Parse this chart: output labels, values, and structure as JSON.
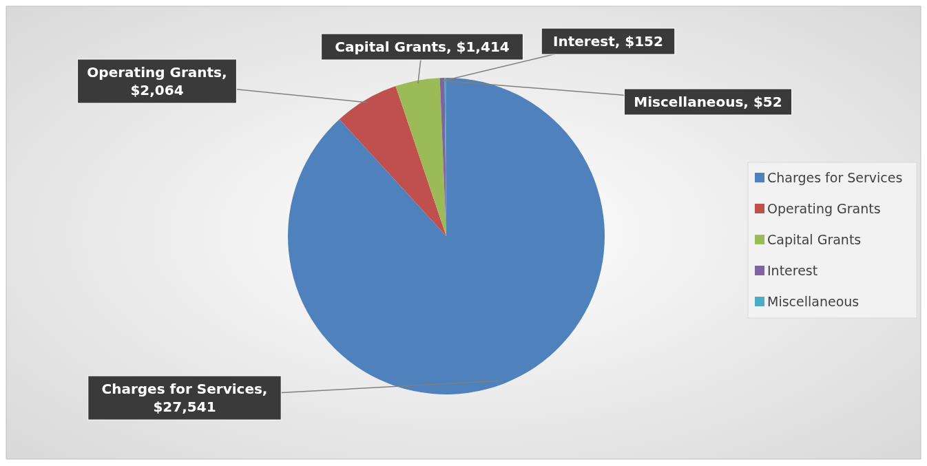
{
  "chart_data": {
    "type": "pie",
    "categories": [
      "Charges for Services",
      "Operating Grants",
      "Capital Grants",
      "Interest",
      "Miscellaneous"
    ],
    "values": [
      27541,
      2064,
      1414,
      152,
      52
    ],
    "value_labels": [
      "Charges for Services, $27,541",
      "Operating Grants, $2,064",
      "Capital Grants, $1,414",
      "Interest, $152",
      "Miscellaneous, $52"
    ],
    "colors": [
      "#4f81bd",
      "#c0504d",
      "#9bbb59",
      "#8064a2",
      "#4bacc6"
    ],
    "legend": "right"
  }
}
